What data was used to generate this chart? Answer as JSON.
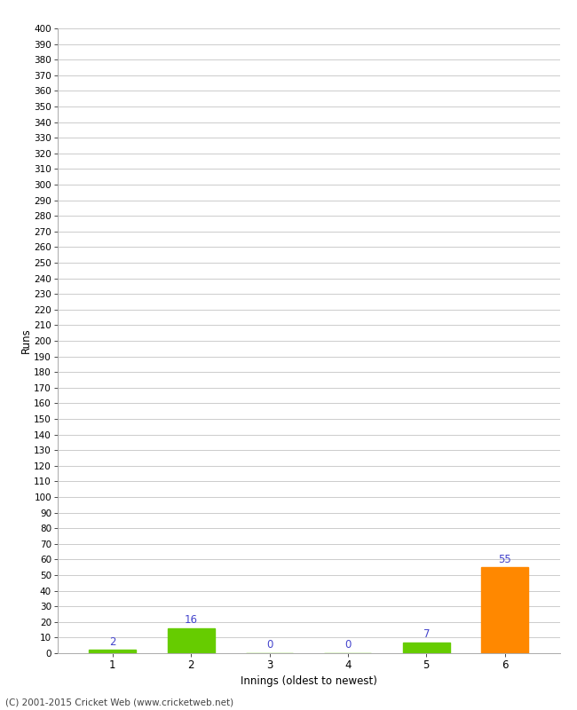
{
  "categories": [
    "1",
    "2",
    "3",
    "4",
    "5",
    "6"
  ],
  "values": [
    2,
    16,
    0,
    0,
    7,
    55
  ],
  "bar_colors": [
    "#66cc00",
    "#66cc00",
    "#66cc00",
    "#66cc00",
    "#66cc00",
    "#ff8800"
  ],
  "xlabel": "Innings (oldest to newest)",
  "ylabel": "Runs",
  "ylim": [
    0,
    400
  ],
  "yticks": [
    0,
    10,
    20,
    30,
    40,
    50,
    60,
    70,
    80,
    90,
    100,
    110,
    120,
    130,
    140,
    150,
    160,
    170,
    180,
    190,
    200,
    210,
    220,
    230,
    240,
    250,
    260,
    270,
    280,
    290,
    300,
    310,
    320,
    330,
    340,
    350,
    360,
    370,
    380,
    390,
    400
  ],
  "label_color": "#4444cc",
  "background_color": "#ffffff",
  "grid_color": "#cccccc",
  "footer": "(C) 2001-2015 Cricket Web (www.cricketweb.net)"
}
